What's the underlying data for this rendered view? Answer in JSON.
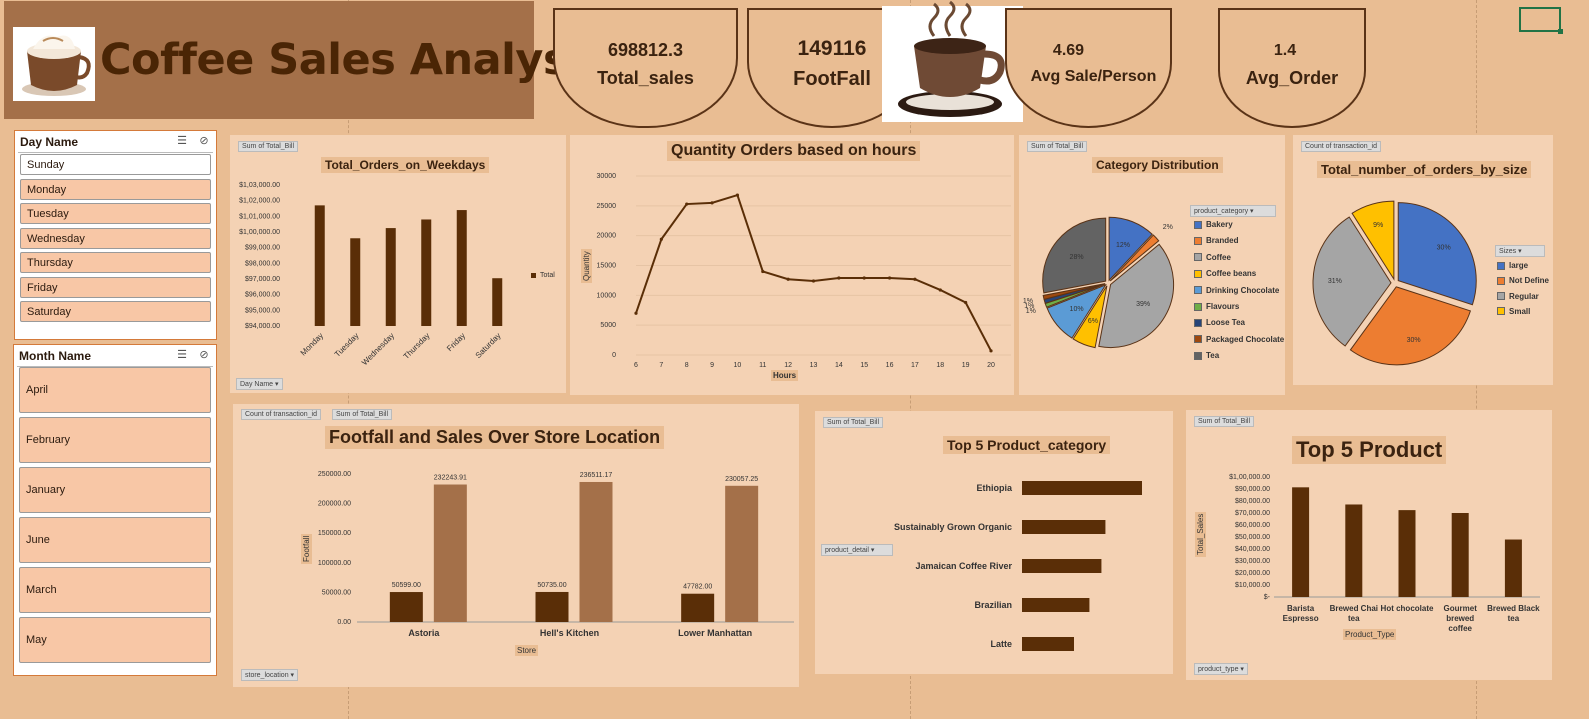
{
  "title": "Coffee Sales Analysis",
  "kpis": [
    {
      "value": "698812.3",
      "label": "Total_sales"
    },
    {
      "value": "149116",
      "label": "FootFall"
    },
    {
      "value": "4.69",
      "label": "Avg Sale/Person"
    },
    {
      "value": "1.4",
      "label": "Avg_Order"
    }
  ],
  "slicers": {
    "day": {
      "header": "Day Name",
      "items": [
        "Sunday",
        "Monday",
        "Tuesday",
        "Wednesday",
        "Thursday",
        "Friday",
        "Saturday"
      ],
      "selected": "Sunday"
    },
    "month": {
      "header": "Month Name",
      "items": [
        "April",
        "February",
        "January",
        "June",
        "March",
        "May"
      ]
    }
  },
  "panels": {
    "weekdays": {
      "field_btn": "Sum of Total_Bill",
      "axis_btn": "Day Name"
    },
    "hours": {},
    "category": {
      "field_btn": "Sum of Total_Bill",
      "legend_btn": "product_category"
    },
    "size": {
      "field_btn": "Count of transaction_id",
      "legend_btn": "Sizes"
    },
    "store": {
      "field_btn1": "Count of transaction_id",
      "field_btn2": "Sum of Total_Bill",
      "axis_btn": "store_location"
    },
    "topcat": {
      "field_btn": "Sum of Total_Bill",
      "axis_btn": "product_detail"
    },
    "topprod": {
      "field_btn": "Sum of Total_Bill",
      "axis_btn": "product_type"
    }
  },
  "chart_data": [
    {
      "type": "bar",
      "title": "Total_Orders_on_Weekdays",
      "categories": [
        "Monday",
        "Tuesday",
        "Wednesday",
        "Thursday",
        "Friday",
        "Saturday"
      ],
      "series": [
        {
          "name": "Total",
          "values": [
            101700,
            99600,
            100250,
            100800,
            101400,
            97050
          ]
        }
      ],
      "ylim": [
        94000,
        103000
      ],
      "ytick_labels": [
        "$1,03,000.00",
        "$1,02,000.00",
        "$1,01,000.00",
        "$1,00,000.00",
        "$99,000.00",
        "$98,000.00",
        "$97,000.00",
        "$96,000.00",
        "$95,000.00",
        "$94,000.00"
      ],
      "color": "#5a2e07",
      "legend": "right"
    },
    {
      "type": "line",
      "title": "Quantity Orders based on hours",
      "xlabel": "Hours",
      "ylabel": "Quantity",
      "x": [
        6,
        7,
        8,
        9,
        10,
        11,
        12,
        13,
        14,
        15,
        16,
        17,
        18,
        19,
        20
      ],
      "values": [
        7000,
        19400,
        25300,
        25500,
        26800,
        14000,
        12700,
        12400,
        12900,
        12900,
        12900,
        12700,
        10900,
        8800,
        700
      ],
      "ylim": [
        0,
        30000
      ],
      "yticks": [
        "30000",
        "25000",
        "20000",
        "15000",
        "10000",
        "5000",
        "0"
      ],
      "color": "#5a2e07"
    },
    {
      "type": "pie",
      "title": "Category Distribution",
      "labels": [
        "Bakery",
        "Branded",
        "Coffee",
        "Coffee beans",
        "Drinking Chocolate",
        "Flavours",
        "Loose Tea",
        "Packaged Chocolate",
        "Tea"
      ],
      "values": [
        12,
        2,
        39,
        6,
        10,
        1,
        1,
        1,
        28
      ],
      "slice_labels": [
        "12%",
        "2%",
        "39%",
        "6%",
        "10%",
        "1%",
        "1%",
        "1%",
        "28%"
      ],
      "colors": [
        "#4472c4",
        "#ed7d31",
        "#a5a5a5",
        "#ffc000",
        "#5b9bd5",
        "#70ad47",
        "#264478",
        "#9e480e",
        "#636363"
      ],
      "legend": "right"
    },
    {
      "type": "pie",
      "title": "Total_number_of_orders_by_size",
      "labels": [
        "large",
        "Not Define",
        "Regular",
        "Small"
      ],
      "values": [
        30,
        30,
        31,
        9
      ],
      "slice_labels": [
        "30%",
        "30%",
        "31%",
        "9%"
      ],
      "colors": [
        "#4472c4",
        "#ed7d31",
        "#a5a5a5",
        "#ffc000"
      ],
      "legend": "right"
    },
    {
      "type": "bar",
      "title": "Footfall and Sales Over Store Location",
      "xlabel": "Store",
      "ylabel": "Footfall",
      "categories": [
        "Astoria",
        "Hell's Kitchen",
        "Lower Manhattan"
      ],
      "series": [
        {
          "values": [
            50599.0,
            50735.0,
            47782.0
          ],
          "labels": [
            "50599.00",
            "50735.00",
            "47782.00"
          ],
          "color": "#5a2e07"
        },
        {
          "values": [
            232243.91,
            236511.17,
            230057.25
          ],
          "labels": [
            "232243.91",
            "236511.17",
            "230057.25"
          ],
          "color": "#a47049"
        }
      ],
      "ylim": [
        0,
        250000
      ],
      "yticks": [
        "250000.00",
        "200000.00",
        "150000.00",
        "100000.00",
        "50000.00",
        "0.00"
      ]
    },
    {
      "type": "bar",
      "orientation": "horizontal",
      "title": "Top 5 Product_category",
      "categories": [
        "Ethiopia",
        "Sustainably Grown Organic",
        "Jamaican Coffee River",
        "Brazilian",
        "Latte"
      ],
      "values": [
        21000,
        14600,
        13900,
        11800,
        9100
      ],
      "color": "#5a2e07"
    },
    {
      "type": "bar",
      "title": "Top 5 Product",
      "xlabel": "Product_Type",
      "ylabel": "Total_Sales",
      "categories": [
        "Barista Espresso",
        "Brewed Chai tea",
        "Hot chocolate",
        "Gourmet brewed coffee",
        "Brewed Black tea"
      ],
      "values": [
        91400,
        77100,
        72400,
        70000,
        47900
      ],
      "ylim": [
        0,
        100000
      ],
      "ytick_labels": [
        "$1,00,000.00",
        "$90,000.00",
        "$80,000.00",
        "$70,000.00",
        "$60,000.00",
        "$50,000.00",
        "$40,000.00",
        "$30,000.00",
        "$20,000.00",
        "$10,000.00",
        "$-"
      ],
      "color": "#5a2e07"
    }
  ]
}
